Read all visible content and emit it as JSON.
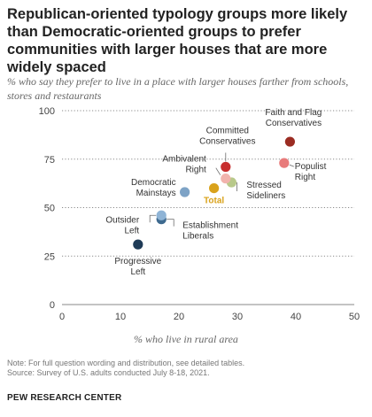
{
  "header": {
    "title": "Republican-oriented typology groups more likely than Democratic-oriented groups to prefer communities with larger houses that are more widely spaced",
    "subtitle": "% who say they prefer to live in a place with larger houses farther from schools, stores and restaurants"
  },
  "footer": {
    "note": "Note: For full question wording and distribution, see detailed tables.",
    "source": "Source: Survey of U.S. adults conducted July 8-18, 2021.",
    "brand": "PEW RESEARCH CENTER"
  },
  "colors": {
    "progressive_left": "#1f3b57",
    "establishment_liberals": "#3e6a8f",
    "outsider_left": "#8fb4d6",
    "democratic_mainstays": "#7ea3c6",
    "total": "#d9a21b",
    "stressed_sideliners": "#b8c98a",
    "ambivalent_right": "#f1b3ad",
    "committed_conservatives": "#c72f2f",
    "populist_right": "#e87b7b",
    "faith_and_flag": "#9b2c22",
    "grid": "#8a8a8a",
    "axis_text": "#444444"
  },
  "chart_data": {
    "type": "scatter",
    "xlabel": "% who live in rural area",
    "ylabel": "",
    "xlim": [
      0,
      50
    ],
    "ylim": [
      0,
      100
    ],
    "xticks": [
      0,
      10,
      20,
      30,
      40,
      50
    ],
    "yticks": [
      0,
      25,
      50,
      75,
      100
    ],
    "grid": "horizontal dotted",
    "points": [
      {
        "name": "Progressive Left",
        "x": 13,
        "y": 31,
        "color_key": "progressive_left"
      },
      {
        "name": "Establishment Liberals",
        "x": 17,
        "y": 44,
        "color_key": "establishment_liberals"
      },
      {
        "name": "Outsider Left",
        "x": 17,
        "y": 46,
        "color_key": "outsider_left"
      },
      {
        "name": "Democratic Mainstays",
        "x": 21,
        "y": 58,
        "color_key": "democratic_mainstays"
      },
      {
        "name": "Total",
        "x": 26,
        "y": 60,
        "color_key": "total"
      },
      {
        "name": "Stressed Sideliners",
        "x": 29,
        "y": 63,
        "color_key": "stressed_sideliners"
      },
      {
        "name": "Ambivalent Right",
        "x": 28,
        "y": 65,
        "color_key": "ambivalent_right"
      },
      {
        "name": "Committed Conservatives",
        "x": 28,
        "y": 71,
        "color_key": "committed_conservatives"
      },
      {
        "name": "Populist Right",
        "x": 38,
        "y": 73,
        "color_key": "populist_right"
      },
      {
        "name": "Faith and Flag Conservatives",
        "x": 39,
        "y": 84,
        "color_key": "faith_and_flag"
      }
    ],
    "labels": [
      {
        "lines": [
          "Progressive",
          "Left"
        ],
        "point": "Progressive Left",
        "anchor": "middle",
        "ax": 13,
        "ay": 31,
        "dx": 0,
        "dy": 22
      },
      {
        "lines": [
          "Establishment",
          "Liberals"
        ],
        "point": "Establishment Liberals",
        "anchor": "start",
        "ax": 17,
        "ay": 44,
        "dx": 24,
        "dy": 10
      },
      {
        "lines": [
          "Outsider",
          "Left"
        ],
        "point": "Outsider Left",
        "anchor": "end",
        "ax": 17,
        "ay": 46,
        "dx": -25,
        "dy": 8
      },
      {
        "lines": [
          "Democratic",
          "Mainstays"
        ],
        "point": "Democratic Mainstays",
        "anchor": "end",
        "ax": 21,
        "ay": 58,
        "dx": -10,
        "dy": -8
      },
      {
        "lines": [
          "Total"
        ],
        "point": "Total",
        "anchor": "middle",
        "ax": 26,
        "ay": 60,
        "dx": 0,
        "dy": 17,
        "bold": true,
        "color_key": "total"
      },
      {
        "lines": [
          "Stressed",
          "Sideliners"
        ],
        "point": "Stressed Sideliners",
        "anchor": "start",
        "ax": 29,
        "ay": 63,
        "dx": 17,
        "dy": 6
      },
      {
        "lines": [
          "Ambivalent",
          "Right"
        ],
        "point": "Ambivalent Right",
        "anchor": "end",
        "ax": 28,
        "ay": 65,
        "dx": -22,
        "dy": -19
      },
      {
        "lines": [
          "Committed",
          "Conservatives"
        ],
        "point": "Committed Conservatives",
        "anchor": "middle",
        "ax": 28,
        "ay": 71,
        "dx": 2,
        "dy": -38
      },
      {
        "lines": [
          "Populist",
          "Right"
        ],
        "point": "Populist Right",
        "anchor": "start",
        "ax": 38,
        "ay": 73,
        "dx": 12,
        "dy": 7
      },
      {
        "lines": [
          "Faith and Flag",
          "Conservatives"
        ],
        "point": "Faith and Flag Conservatives",
        "anchor": "middle",
        "ax": 39,
        "ay": 84,
        "dx": 4,
        "dy": -30
      }
    ],
    "leaders": [
      {
        "point": "Establishment Liberals",
        "kind": "elbow",
        "dx1": 14,
        "dy1": 0,
        "dx2": 14,
        "dy2": 8
      },
      {
        "point": "Outsider Left",
        "kind": "elbow",
        "dx1": -13,
        "dy1": 0,
        "dx2": -13,
        "dy2": 8
      },
      {
        "point": "Stressed Sideliners",
        "kind": "elbow",
        "dx1": 6,
        "dy1": 0,
        "dx2": 6,
        "dy2": 10
      },
      {
        "point": "Ambivalent Right",
        "kind": "line",
        "dx1": -6,
        "dy1": -4,
        "dx2": -11,
        "dy2": -12
      },
      {
        "point": "Committed Conservatives",
        "kind": "line",
        "dx1": 0,
        "dy1": -6,
        "dx2": 0,
        "dy2": -16
      },
      {
        "point": "Populist Right",
        "kind": "line",
        "dx1": 6,
        "dy1": 2,
        "dx2": 11,
        "dy2": 4
      }
    ]
  }
}
